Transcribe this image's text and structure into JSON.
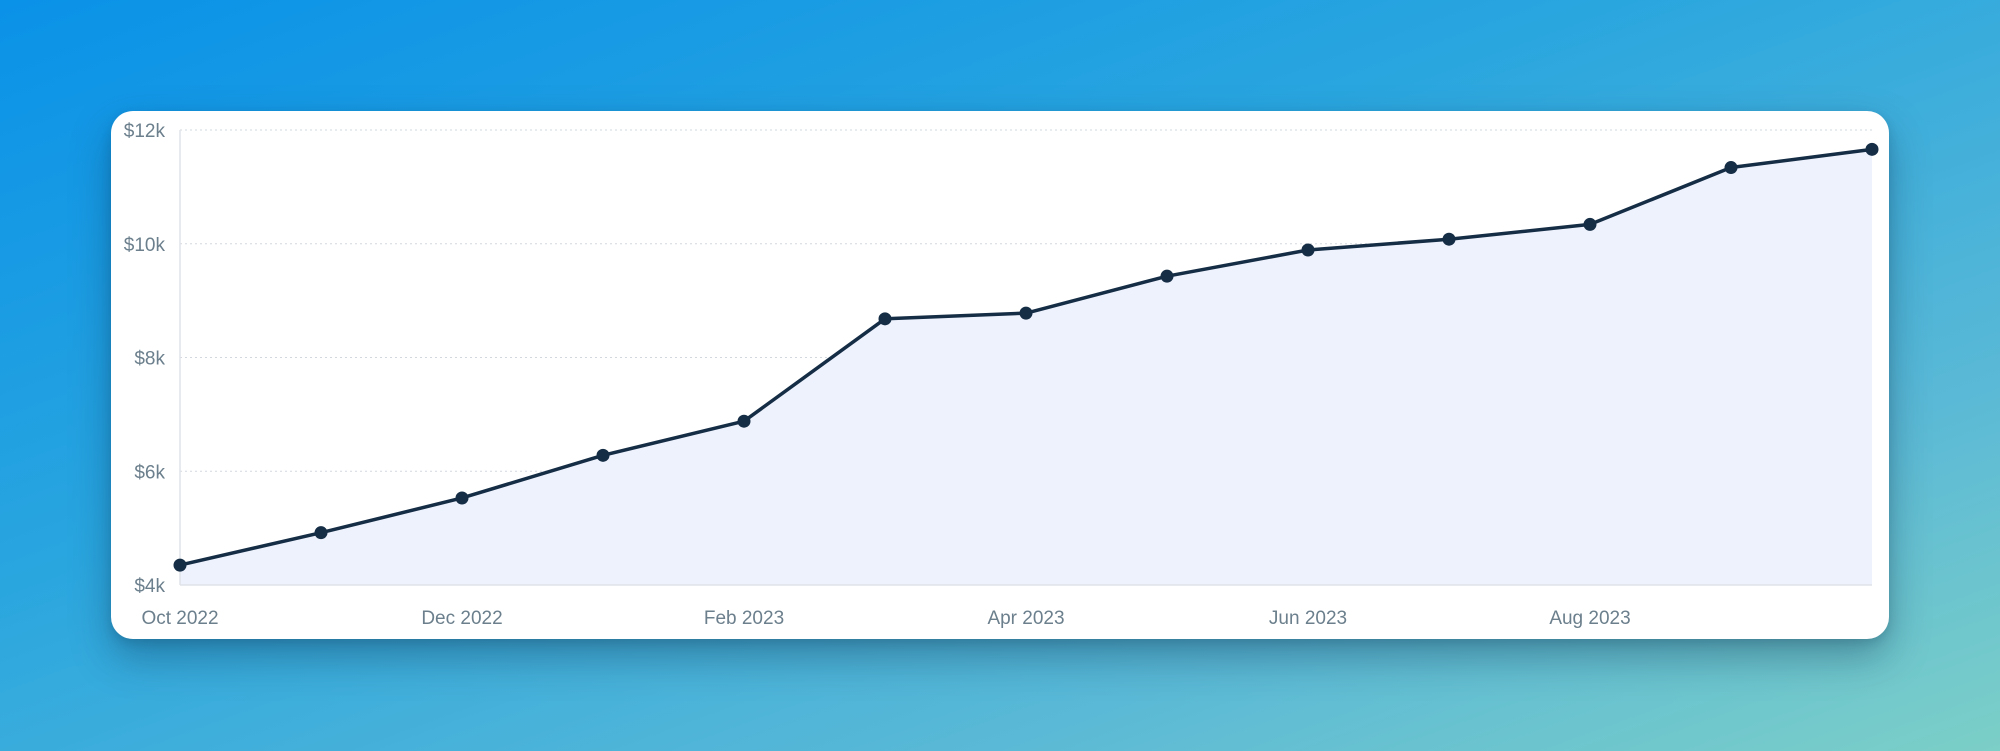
{
  "chart_data": {
    "type": "area",
    "title": "",
    "xlabel": "",
    "ylabel": "",
    "x": [
      "2022-10",
      "2022-11",
      "2022-12",
      "2023-01",
      "2023-02",
      "2023-03",
      "2023-04",
      "2023-05",
      "2023-06",
      "2023-07",
      "2023-08",
      "2023-09",
      "2023-10"
    ],
    "series": [
      {
        "values": [
          4350,
          4920,
          5530,
          6280,
          6880,
          8680,
          8780,
          9430,
          9890,
          10080,
          10340,
          11340,
          11660
        ]
      }
    ],
    "ylim": [
      4000,
      12000
    ],
    "yticks": [
      4000,
      6000,
      8000,
      10000,
      12000
    ],
    "ytick_labels": [
      "$4k",
      "$6k",
      "$8k",
      "$10k",
      "$12k"
    ],
    "xtick_indices": [
      0,
      2,
      4,
      6,
      8,
      10
    ],
    "xtick_labels": [
      "Oct 2022",
      "Dec 2022",
      "Feb 2023",
      "Apr 2023",
      "Jun 2023",
      "Aug 2023"
    ],
    "grid": "horizontal dotted",
    "legend": "none",
    "colors": {
      "line": "#152d45",
      "marker": "#152d45",
      "area_fill": "#eef2fd",
      "grid": "#d3d8de",
      "tick_text": "#6b7f8c"
    }
  }
}
